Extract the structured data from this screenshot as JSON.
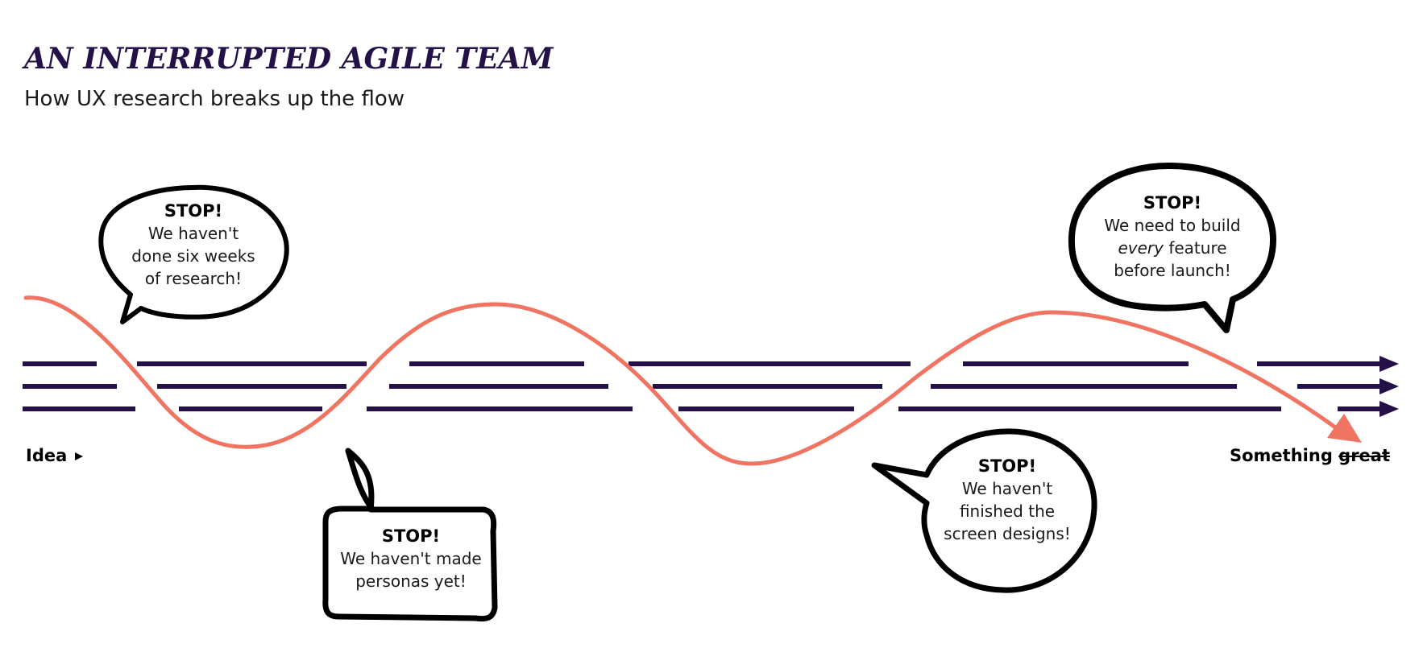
{
  "title": "AN INTERRUPTED AGILE TEAM",
  "subtitle": "How UX research breaks up the flow",
  "start_label": "Idea",
  "end_label": {
    "word": "Something",
    "struck_word": "great"
  },
  "bubbles": [
    {
      "stop": "STOP!",
      "lines": [
        "We haven't",
        "done six weeks",
        "of research!"
      ]
    },
    {
      "stop": "STOP!",
      "lines": [
        "We haven't made",
        "personas yet!"
      ]
    },
    {
      "stop": "STOP!",
      "lines": [
        "We haven't",
        "finished the",
        "screen designs!"
      ]
    },
    {
      "stop": "STOP!",
      "lines": [
        "We need to build",
        "every",
        " feature",
        "before launch!"
      ]
    }
  ],
  "colors": {
    "team_lines": "#241147",
    "flow_curve": "#f07462",
    "bubble_outline": "#000000",
    "title": "#241147"
  },
  "icons": {
    "start_marker": "triangle-right-icon"
  }
}
